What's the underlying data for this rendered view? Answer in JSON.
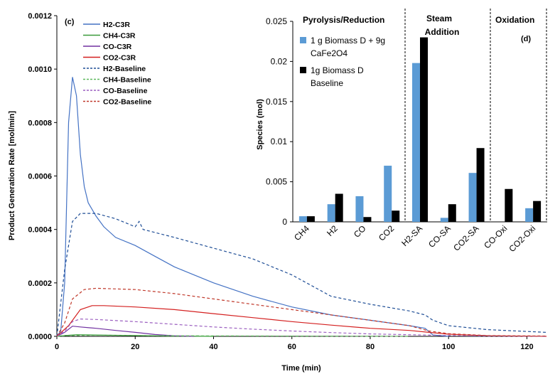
{
  "chart_data": [
    {
      "panel": "(c)",
      "type": "line",
      "xlabel": "Time (min)",
      "ylabel": "Product Generation Rate [mol/min]",
      "xlim": [
        0,
        125
      ],
      "ylim": [
        0,
        0.0012
      ],
      "x_ticks": [
        "0",
        "20",
        "40",
        "60",
        "80",
        "100",
        "120"
      ],
      "y_ticks": [
        "0.0000",
        "0.0002",
        "0.0004",
        "0.0006",
        "0.0008",
        "0.0010",
        "0.0012"
      ],
      "series": [
        {
          "name": "H2-C3R",
          "color": "#4472c4",
          "dash": "solid",
          "points": [
            [
              0,
              0
            ],
            [
              1,
              2e-05
            ],
            [
              2,
              0.0002
            ],
            [
              3,
              0.0008
            ],
            [
              4,
              0.00097
            ],
            [
              5,
              0.0009
            ],
            [
              6,
              0.00068
            ],
            [
              7,
              0.00056
            ],
            [
              8,
              0.0005
            ],
            [
              10,
              0.00045
            ],
            [
              12,
              0.00041
            ],
            [
              15,
              0.00037
            ],
            [
              20,
              0.00034
            ],
            [
              25,
              0.0003
            ],
            [
              30,
              0.00026
            ],
            [
              35,
              0.00023
            ],
            [
              40,
              0.0002
            ],
            [
              50,
              0.00015
            ],
            [
              60,
              0.00011
            ],
            [
              70,
              8e-05
            ],
            [
              80,
              6e-05
            ],
            [
              90,
              4e-05
            ],
            [
              94,
              3e-05
            ],
            [
              96,
              5e-06
            ],
            [
              100,
              0.0
            ]
          ]
        },
        {
          "name": "CH4-C3R",
          "color": "#3a9a3a",
          "dash": "solid",
          "points": [
            [
              0,
              0
            ],
            [
              2,
              3e-06
            ],
            [
              5,
              6e-06
            ],
            [
              10,
              5e-06
            ],
            [
              20,
              3e-06
            ],
            [
              30,
              1e-06
            ],
            [
              40,
              0
            ]
          ]
        },
        {
          "name": "CO-C3R",
          "color": "#7030a0",
          "dash": "solid",
          "points": [
            [
              0,
              0
            ],
            [
              2,
              1.5e-05
            ],
            [
              4,
              3.8e-05
            ],
            [
              6,
              3.5e-05
            ],
            [
              10,
              3e-05
            ],
            [
              15,
              2.2e-05
            ],
            [
              20,
              1.5e-05
            ],
            [
              25,
              7e-06
            ],
            [
              30,
              2e-06
            ],
            [
              35,
              0
            ]
          ]
        },
        {
          "name": "CO2-C3R",
          "color": "#d42020",
          "dash": "solid",
          "points": [
            [
              0,
              0
            ],
            [
              3,
              4e-05
            ],
            [
              6,
              0.0001
            ],
            [
              9,
              0.000115
            ],
            [
              12,
              0.000115
            ],
            [
              20,
              0.00011
            ],
            [
              30,
              0.0001
            ],
            [
              40,
              8.5e-05
            ],
            [
              50,
              7e-05
            ],
            [
              60,
              5.5e-05
            ],
            [
              70,
              4.2e-05
            ],
            [
              80,
              3e-05
            ],
            [
              90,
              2.2e-05
            ],
            [
              95,
              1.5e-05
            ],
            [
              100,
              8e-06
            ],
            [
              110,
              2e-06
            ],
            [
              125,
              0
            ]
          ]
        },
        {
          "name": "H2-Baseline",
          "color": "#1f4e96",
          "dash": "4,3",
          "points": [
            [
              0,
              0
            ],
            [
              2,
              0.00025
            ],
            [
              4,
              0.00043
            ],
            [
              6,
              0.00046
            ],
            [
              10,
              0.00046
            ],
            [
              15,
              0.00044
            ],
            [
              20,
              0.00041
            ],
            [
              21,
              0.00043
            ],
            [
              22,
              0.0004
            ],
            [
              30,
              0.00037
            ],
            [
              40,
              0.00033
            ],
            [
              50,
              0.00029
            ],
            [
              60,
              0.00023
            ],
            [
              65,
              0.00019
            ],
            [
              70,
              0.00015
            ],
            [
              80,
              0.00012
            ],
            [
              90,
              9.5e-05
            ],
            [
              94,
              8e-05
            ],
            [
              96,
              6e-05
            ],
            [
              100,
              4e-05
            ],
            [
              110,
              2.5e-05
            ],
            [
              125,
              1.5e-05
            ]
          ]
        },
        {
          "name": "CH4-Baseline",
          "color": "#5cb85c",
          "dash": "4,3",
          "points": [
            [
              0,
              0
            ],
            [
              3,
              3e-06
            ],
            [
              10,
              4e-06
            ],
            [
              30,
              2e-06
            ],
            [
              60,
              1e-06
            ],
            [
              90,
              0
            ]
          ]
        },
        {
          "name": "CO-Baseline",
          "color": "#9b5fc0",
          "dash": "4,3",
          "points": [
            [
              0,
              0
            ],
            [
              2,
              2e-05
            ],
            [
              4,
              5.5e-05
            ],
            [
              6,
              6.5e-05
            ],
            [
              10,
              6.3e-05
            ],
            [
              20,
              5.5e-05
            ],
            [
              30,
              4.5e-05
            ],
            [
              40,
              3.5e-05
            ],
            [
              50,
              2.7e-05
            ],
            [
              60,
              2e-05
            ],
            [
              70,
              1.4e-05
            ],
            [
              80,
              9e-06
            ],
            [
              90,
              6e-06
            ],
            [
              100,
              3e-06
            ],
            [
              110,
              1e-06
            ],
            [
              125,
              0
            ]
          ]
        },
        {
          "name": "CO2-Baseline",
          "color": "#c0392b",
          "dash": "4,3",
          "points": [
            [
              0,
              0
            ],
            [
              2,
              5e-05
            ],
            [
              4,
              0.00014
            ],
            [
              7,
              0.000175
            ],
            [
              10,
              0.00018
            ],
            [
              20,
              0.000175
            ],
            [
              30,
              0.00016
            ],
            [
              40,
              0.00014
            ],
            [
              50,
              0.00012
            ],
            [
              60,
              0.0001
            ],
            [
              70,
              8e-05
            ],
            [
              80,
              6e-05
            ],
            [
              90,
              4e-05
            ],
            [
              95,
              2e-05
            ],
            [
              100,
              1e-05
            ],
            [
              110,
              3e-06
            ],
            [
              125,
              1e-06
            ]
          ]
        }
      ]
    },
    {
      "panel": "(d)",
      "type": "bar",
      "ylabel": "Species (mol)",
      "ylim": [
        0,
        0.025
      ],
      "y_ticks": [
        "0",
        "0.005",
        "0.01",
        "0.015",
        "0.02",
        "0.025"
      ],
      "categories": [
        "CH4",
        "H2",
        "CO",
        "CO2",
        "H2-SA",
        "CO-SA",
        "CO2-SA",
        "CO-Oxi",
        "CO2-Oxi"
      ],
      "series": [
        {
          "name": "1 g Biomass D + 9g CaFe2O4",
          "color": "#5b9bd5",
          "values": [
            0.0007,
            0.0022,
            0.0032,
            0.007,
            0.0198,
            0.0005,
            0.0061,
            0.0,
            0.0017
          ]
        },
        {
          "name": "1g Biomass D Baseline",
          "color": "#000000",
          "values": [
            0.0007,
            0.0035,
            0.0006,
            0.0014,
            0.023,
            0.0022,
            0.0092,
            0.0041,
            0.0026
          ]
        }
      ],
      "legend_lines": [
        [
          "1 g Biomass D + 9g",
          "CaFe2O4"
        ],
        [
          "1g Biomass D",
          "Baseline"
        ]
      ],
      "region_labels": {
        "pyrolysis": "Pyrolysis/Reduction",
        "steam_line1": "Steam",
        "steam_line2": "Addition",
        "oxidation": "Oxidation"
      }
    }
  ]
}
